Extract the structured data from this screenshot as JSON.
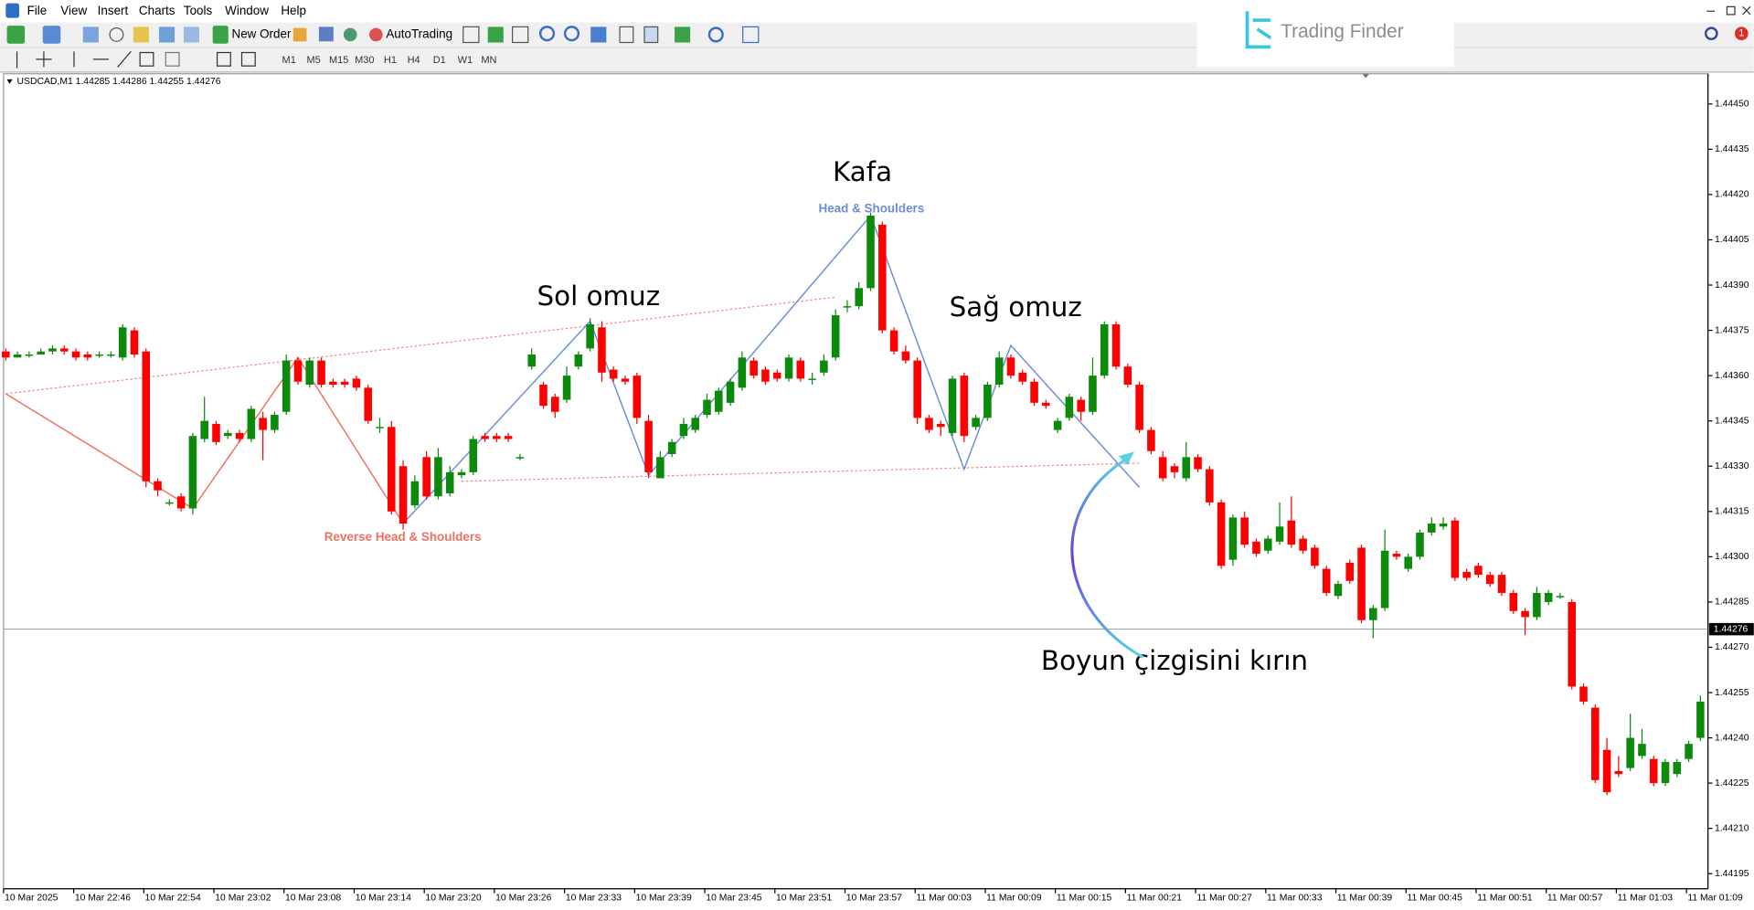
{
  "menu": [
    "File",
    "View",
    "Insert",
    "Charts",
    "Tools",
    "Window",
    "Help"
  ],
  "toolbar": {
    "new_order": "New Order",
    "auto_trading": "AutoTrading",
    "timeframes": [
      "M1",
      "M5",
      "M15",
      "M30",
      "H1",
      "H4",
      "D1",
      "W1",
      "MN"
    ]
  },
  "logo": "Trading Finder",
  "notifications": 1,
  "chart_data": {
    "type": "candlestick",
    "header": "USDCAD,M1 1.44285 1.44286 1.44255 1.44276",
    "categories": [
      "10 Mar 2025",
      null,
      null,
      null,
      null,
      null,
      "10 Mar 22:46",
      null,
      null,
      null,
      null,
      null,
      "10 Mar 22:54",
      null,
      null,
      null,
      null,
      null,
      "10 Mar 23:02",
      null,
      null,
      null,
      null,
      null,
      "10 Mar 23:08",
      null,
      null,
      null,
      null,
      null,
      "10 Mar 23:14",
      null,
      null,
      null,
      null,
      null,
      "10 Mar 23:20",
      null,
      null,
      null,
      null,
      null,
      "10 Mar 23:26",
      null,
      null,
      null,
      null,
      null,
      "10 Mar 23:33",
      null,
      null,
      null,
      null,
      null,
      "10 Mar 23:39",
      null,
      null,
      null,
      null,
      null,
      "10 Mar 23:45",
      null,
      null,
      null,
      null,
      null,
      "10 Mar 23:51",
      null,
      null,
      null,
      null,
      null,
      "10 Mar 23:57",
      null,
      null,
      null,
      null,
      null,
      "11 Mar 00:03",
      null,
      null,
      null,
      null,
      null,
      "11 Mar 00:09",
      null,
      null,
      null,
      null,
      null,
      "11 Mar 00:15",
      null,
      null,
      null,
      null,
      null,
      "11 Mar 00:21",
      null,
      null,
      null,
      null,
      null,
      "11 Mar 00:27",
      null,
      null,
      null,
      null,
      null,
      "11 Mar 00:33",
      null,
      null,
      null,
      null,
      null,
      "11 Mar 00:39",
      null,
      null,
      null,
      null,
      null,
      "11 Mar 00:45",
      null,
      null,
      null,
      null,
      null,
      "11 Mar 00:51",
      null,
      null,
      null,
      null,
      null,
      "11 Mar 00:57",
      null,
      null,
      null,
      null,
      null,
      "11 Mar 01:03",
      null,
      null,
      null,
      null,
      null,
      "11 Mar 01:09",
      null
    ],
    "open": [
      1.44368,
      1.44366,
      1.44367,
      1.44367,
      1.44368,
      1.44369,
      1.44368,
      1.44367,
      1.44367,
      1.44367,
      1.44366,
      1.44375,
      1.44368,
      1.44325,
      1.44318,
      1.4432,
      1.44316,
      1.44339,
      1.44344,
      1.4434,
      1.44341,
      1.44339,
      1.44346,
      1.44342,
      1.44348,
      1.44365,
      1.44357,
      1.44365,
      1.44358,
      1.44358,
      1.44359,
      1.44356,
      1.44343,
      1.44343,
      1.4433,
      1.44317,
      1.44333,
      1.4432,
      1.44321,
      1.44327,
      1.44328,
      1.4434,
      1.4434,
      1.4434,
      1.44333,
      1.44363,
      1.44357,
      1.44353,
      1.44352,
      1.44363,
      1.44369,
      1.44376,
      1.44362,
      1.44359,
      1.4436,
      1.44345,
      1.44326,
      1.44334,
      1.4434,
      1.44342,
      1.44347,
      1.44348,
      1.44351,
      1.44356,
      1.44365,
      1.44362,
      1.44361,
      1.44359,
      1.44365,
      1.44359,
      1.44361,
      1.44366,
      1.44383,
      1.44383,
      1.44389,
      1.4441,
      1.44375,
      1.44368,
      1.44365,
      1.44346,
      1.44344,
      1.44341,
      1.4436,
      1.44343,
      1.44346,
      1.44357,
      1.44366,
      1.44361,
      1.44358,
      1.44351,
      1.44342,
      1.44346,
      1.44352,
      1.44348,
      1.4436,
      1.44377,
      1.44363,
      1.44357,
      1.44342,
      1.44333,
      1.4433,
      1.44326,
      1.44333,
      1.44329,
      1.44318,
      1.44299,
      1.44313,
      1.44305,
      1.44302,
      1.44305,
      1.44312,
      1.44306,
      1.44303,
      1.44296,
      1.44287,
      1.44298,
      1.44303,
      1.44279,
      1.44283,
      1.44301,
      1.44296,
      1.443,
      1.44308,
      1.4431,
      1.44312,
      1.44295,
      1.44297,
      1.44294,
      1.44294,
      1.44288,
      1.44282,
      1.4428,
      1.44285,
      1.44287,
      1.44285,
      1.44257,
      1.4425,
      1.44236,
      1.44229,
      1.4423,
      1.44234,
      1.44233,
      1.44225,
      1.44228,
      1.44233,
      1.4424
    ],
    "high": [
      1.44369,
      1.44368,
      1.44368,
      1.44369,
      1.4437,
      1.4437,
      1.44369,
      1.44368,
      1.44368,
      1.44368,
      1.44377,
      1.44376,
      1.44369,
      1.44326,
      1.44319,
      1.44321,
      1.44341,
      1.44353,
      1.44345,
      1.44342,
      1.44342,
      1.4435,
      1.44348,
      1.44348,
      1.44367,
      1.44366,
      1.44366,
      1.44366,
      1.44359,
      1.44359,
      1.4436,
      1.44357,
      1.44346,
      1.44345,
      1.44332,
      1.44327,
      1.44335,
      1.44336,
      1.4433,
      1.44329,
      1.4434,
      1.44341,
      1.44341,
      1.44341,
      1.44334,
      1.44369,
      1.44358,
      1.44354,
      1.44363,
      1.44368,
      1.44379,
      1.44378,
      1.44363,
      1.4436,
      1.44361,
      1.44347,
      1.44335,
      1.44339,
      1.44346,
      1.44347,
      1.44354,
      1.44356,
      1.44359,
      1.44368,
      1.44366,
      1.44363,
      1.44362,
      1.44367,
      1.44366,
      1.44361,
      1.44367,
      1.44382,
      1.44385,
      1.44391,
      1.44414,
      1.44411,
      1.44376,
      1.4437,
      1.44366,
      1.44347,
      1.44345,
      1.4436,
      1.44361,
      1.44347,
      1.44358,
      1.44368,
      1.44367,
      1.44362,
      1.44359,
      1.44352,
      1.44346,
      1.44354,
      1.44353,
      1.44366,
      1.44378,
      1.44378,
      1.44364,
      1.44358,
      1.44343,
      1.44335,
      1.44331,
      1.44338,
      1.44334,
      1.4433,
      1.44319,
      1.44314,
      1.44315,
      1.44306,
      1.44307,
      1.44318,
      1.4432,
      1.44307,
      1.44304,
      1.44297,
      1.44292,
      1.44299,
      1.44304,
      1.44284,
      1.44309,
      1.44302,
      1.44301,
      1.44309,
      1.44313,
      1.44313,
      1.44313,
      1.44296,
      1.44298,
      1.44295,
      1.44295,
      1.44289,
      1.44283,
      1.4429,
      1.44289,
      1.44288,
      1.44286,
      1.44258,
      1.44251,
      1.4424,
      1.44234,
      1.44248,
      1.44243,
      1.44234,
      1.44233,
      1.44233,
      1.44239,
      1.44254
    ],
    "low": [
      1.44365,
      1.44366,
      1.44366,
      1.44367,
      1.44367,
      1.44367,
      1.44365,
      1.44365,
      1.44366,
      1.44366,
      1.44365,
      1.44366,
      1.44323,
      1.4432,
      1.44317,
      1.44315,
      1.44314,
      1.44338,
      1.44337,
      1.44339,
      1.44338,
      1.44338,
      1.44332,
      1.44341,
      1.44347,
      1.44357,
      1.44356,
      1.44356,
      1.44356,
      1.44356,
      1.44355,
      1.44344,
      1.44341,
      1.44314,
      1.44309,
      1.44316,
      1.44319,
      1.44319,
      1.4432,
      1.44326,
      1.44327,
      1.44338,
      1.44338,
      1.44338,
      1.44332,
      1.44362,
      1.44349,
      1.44346,
      1.44351,
      1.44362,
      1.44368,
      1.44358,
      1.44358,
      1.44357,
      1.44344,
      1.44326,
      1.44326,
      1.44333,
      1.44339,
      1.44341,
      1.44346,
      1.44347,
      1.4435,
      1.44355,
      1.44359,
      1.44357,
      1.44358,
      1.44358,
      1.44358,
      1.44357,
      1.4436,
      1.44365,
      1.44381,
      1.44382,
      1.44388,
      1.44374,
      1.44367,
      1.44364,
      1.44344,
      1.44341,
      1.4434,
      1.4434,
      1.44338,
      1.44342,
      1.44345,
      1.44356,
      1.44359,
      1.44357,
      1.4435,
      1.44349,
      1.44341,
      1.44345,
      1.44345,
      1.44347,
      1.44359,
      1.44362,
      1.44356,
      1.44341,
      1.44334,
      1.44325,
      1.44326,
      1.44325,
      1.44328,
      1.44317,
      1.44296,
      1.44297,
      1.44303,
      1.443,
      1.44301,
      1.44304,
      1.44303,
      1.44301,
      1.44296,
      1.44287,
      1.44286,
      1.44291,
      1.44278,
      1.44273,
      1.44282,
      1.44299,
      1.44295,
      1.44299,
      1.44307,
      1.44309,
      1.44292,
      1.44292,
      1.44293,
      1.4429,
      1.44287,
      1.44281,
      1.44274,
      1.44279,
      1.44284,
      1.44286,
      1.44256,
      1.44251,
      1.44225,
      1.44221,
      1.44227,
      1.44229,
      1.44233,
      1.44224,
      1.44224,
      1.44227,
      1.44232,
      1.44239
    ],
    "close": [
      1.44366,
      1.44367,
      1.44367,
      1.44368,
      1.44369,
      1.44368,
      1.44366,
      1.44366,
      1.44367,
      1.44367,
      1.44376,
      1.44367,
      1.44325,
      1.44322,
      1.44318,
      1.44316,
      1.4434,
      1.44345,
      1.44338,
      1.44341,
      1.44339,
      1.44349,
      1.44342,
      1.44347,
      1.44365,
      1.44358,
      1.44365,
      1.44357,
      1.44357,
      1.44357,
      1.44356,
      1.44345,
      1.44343,
      1.44315,
      1.44311,
      1.44325,
      1.4432,
      1.44333,
      1.44328,
      1.44328,
      1.44339,
      1.44339,
      1.44339,
      1.44339,
      1.44333,
      1.44367,
      1.4435,
      1.44348,
      1.4436,
      1.44367,
      1.44377,
      1.44361,
      1.44359,
      1.44358,
      1.44346,
      1.44328,
      1.44333,
      1.44338,
      1.44344,
      1.44346,
      1.44352,
      1.44355,
      1.44358,
      1.44366,
      1.4436,
      1.44358,
      1.44359,
      1.44366,
      1.44359,
      1.44359,
      1.44365,
      1.4438,
      1.44383,
      1.44389,
      1.44413,
      1.44375,
      1.44368,
      1.44365,
      1.44346,
      1.44342,
      1.44343,
      1.44359,
      1.4434,
      1.44346,
      1.44357,
      1.44366,
      1.4436,
      1.44358,
      1.44351,
      1.4435,
      1.44345,
      1.44353,
      1.44348,
      1.4436,
      1.44377,
      1.44363,
      1.44357,
      1.44342,
      1.44335,
      1.44326,
      1.44328,
      1.44333,
      1.44329,
      1.44318,
      1.44297,
      1.44313,
      1.44304,
      1.44301,
      1.44306,
      1.4431,
      1.44304,
      1.44302,
      1.44297,
      1.44288,
      1.44291,
      1.44292,
      1.44279,
      1.44283,
      1.44302,
      1.443,
      1.443,
      1.44308,
      1.44311,
      1.44311,
      1.44293,
      1.44293,
      1.44294,
      1.44291,
      1.44288,
      1.44282,
      1.4428,
      1.44288,
      1.44288,
      1.44287,
      1.44257,
      1.44252,
      1.44226,
      1.44222,
      1.44228,
      1.4424,
      1.44238,
      1.44225,
      1.44232,
      1.44232,
      1.44238,
      1.44252
    ],
    "up_color": "#0b8a0b",
    "down_color": "#ff0000",
    "ylim": [
      1.4419,
      1.4446
    ],
    "yticks": [
      {
        "value": 1.4445,
        "label": "1.44450"
      },
      1.44435,
      {
        "value": 1.4442,
        "label": "1.44420"
      },
      1.44405,
      {
        "value": 1.4439,
        "label": "1.44390"
      },
      1.44375,
      {
        "value": 1.4436,
        "label": "1.44360"
      },
      1.44345,
      {
        "value": 1.4433,
        "label": "1.44330"
      },
      1.44315,
      {
        "value": 1.443,
        "label": "1.44300"
      },
      1.44285,
      {
        "value": 1.4427,
        "label": "1.44270"
      },
      1.44255,
      {
        "value": 1.4424,
        "label": "1.44240"
      },
      1.44225,
      {
        "value": 1.4421,
        "label": "1.44210"
      },
      1.44195
    ],
    "bid": 1.44276,
    "bid_color": "#8fa0a0",
    "overlays": [
      {
        "name": "Head & Shoulders",
        "color": "#6b8fd6",
        "bars": [
          34,
          50,
          55,
          74,
          82,
          86,
          97
        ],
        "prices": [
          1.44311,
          1.44378,
          1.44327,
          1.44413,
          1.44329,
          1.4437,
          1.44323
        ]
      },
      {
        "name": "Reverse Head & Shoulders",
        "color": "#f07062",
        "bars": [
          0,
          16,
          25,
          34
        ],
        "prices": [
          1.44354,
          1.44316,
          1.44366,
          1.44311
        ]
      }
    ],
    "necklines": [
      {
        "bars": [
          0,
          71
        ],
        "prices": [
          1.44354,
          1.44386
        ]
      },
      {
        "bars": [
          39,
          97
        ],
        "prices": [
          1.44325,
          1.44331
        ]
      }
    ],
    "neckline_color": "#f08a80",
    "annotations": {
      "head": "Kafa",
      "left_shoulder": "Sol omuz",
      "right_shoulder": "Sağ omuz",
      "neckline_break": "Boyun çizgisini kırın"
    }
  }
}
